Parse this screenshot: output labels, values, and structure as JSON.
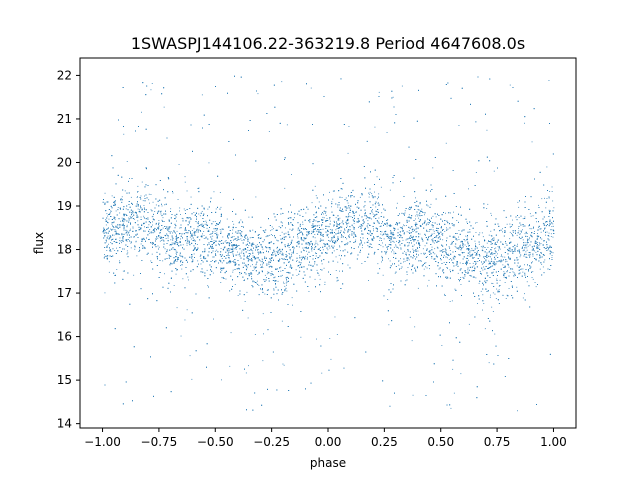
{
  "chart_data": {
    "type": "scatter",
    "title": "1SWASPJ144106.22-363219.8 Period 4647608.0s",
    "xlabel": "phase",
    "ylabel": "flux",
    "xlim": [
      -1.1,
      1.1
    ],
    "ylim": [
      13.9,
      22.4
    ],
    "xticks": [
      -1.0,
      -0.75,
      -0.5,
      -0.25,
      0.0,
      0.25,
      0.5,
      0.75,
      1.0
    ],
    "xtick_labels": [
      "−1.00",
      "−0.75",
      "−0.50",
      "−0.25",
      "0.00",
      "0.25",
      "0.50",
      "0.75",
      "1.00"
    ],
    "yticks": [
      14,
      15,
      16,
      17,
      18,
      19,
      20,
      21,
      22
    ],
    "ytick_labels": [
      "14",
      "15",
      "16",
      "17",
      "18",
      "19",
      "20",
      "21",
      "22"
    ],
    "grid": false,
    "legend": "none",
    "series": [
      {
        "color": "#1f77b4",
        "marker_size": "tiny",
        "phase_range": [
          -1.0,
          1.0
        ],
        "baseline_flux": [
          [
            -1.0,
            18.4
          ],
          [
            -0.9,
            18.5
          ],
          [
            -0.8,
            18.6
          ],
          [
            -0.7,
            18.2
          ],
          [
            -0.6,
            18.3
          ],
          [
            -0.5,
            18.1
          ],
          [
            -0.4,
            17.9
          ],
          [
            -0.3,
            17.7
          ],
          [
            -0.2,
            17.9
          ],
          [
            -0.1,
            18.1
          ],
          [
            0.0,
            18.4
          ],
          [
            0.1,
            18.5
          ],
          [
            0.2,
            18.6
          ],
          [
            0.3,
            18.2
          ],
          [
            0.4,
            18.3
          ],
          [
            0.5,
            18.1
          ],
          [
            0.6,
            17.9
          ],
          [
            0.7,
            17.7
          ],
          [
            0.8,
            17.9
          ],
          [
            0.9,
            18.1
          ],
          [
            1.0,
            18.4
          ]
        ],
        "core_scatter_sigma": 0.45,
        "high_outlier_max": 22.0,
        "low_outlier_min": 14.3
      }
    ]
  }
}
